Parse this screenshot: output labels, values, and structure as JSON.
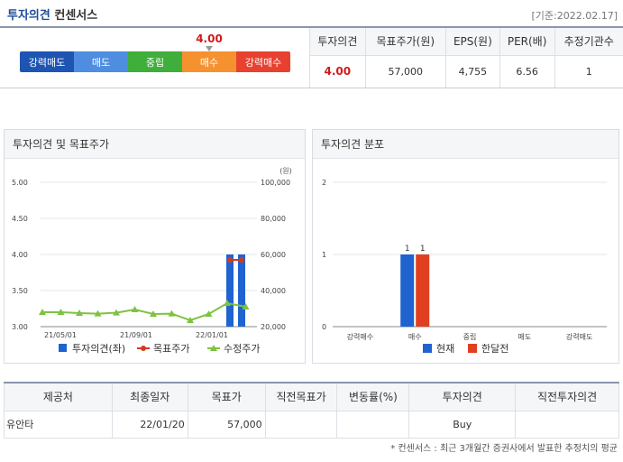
{
  "header": {
    "title_part1": "투자의견",
    "title_part2": "컨센서스",
    "base_date": "[기준:2022.02.17]"
  },
  "opinion_scale": {
    "score": "4.00",
    "score_value": 4.0,
    "levels": [
      {
        "label": "강력매도",
        "color": "#1e55b3"
      },
      {
        "label": "매도",
        "color": "#4f8de0"
      },
      {
        "label": "중립",
        "color": "#3fae3a"
      },
      {
        "label": "매수",
        "color": "#f5922f"
      },
      {
        "label": "강력매수",
        "color": "#e8412f"
      }
    ]
  },
  "consensus_table": {
    "headers": [
      "투자의견",
      "목표주가(원)",
      "EPS(원)",
      "PER(배)",
      "추정기관수"
    ],
    "values": [
      "4.00",
      "57,000",
      "4,755",
      "6.56",
      "1"
    ]
  },
  "left_panel": {
    "title": "투자의견 및 목표주가",
    "unit": "(원)",
    "legend": [
      {
        "label": "투자의견(좌)",
        "color": "#1f63d1"
      },
      {
        "label": "목표주가",
        "color": "#d23a1e"
      },
      {
        "label": "수정주가",
        "color": "#7ec242"
      }
    ]
  },
  "right_panel": {
    "title": "투자의견 분포",
    "legend": [
      {
        "label": "현재",
        "color": "#1f63d1"
      },
      {
        "label": "한달전",
        "color": "#e0401f"
      }
    ]
  },
  "providers_table": {
    "headers": [
      "제공처",
      "최종일자",
      "목표가",
      "직전목표가",
      "변동률(%)",
      "투자의견",
      "직전투자의견"
    ],
    "rows": [
      [
        "유안타",
        "22/01/20",
        "57,000",
        "",
        "",
        "Buy",
        ""
      ]
    ]
  },
  "footnote": "* 컨센서스 : 최근 3개월간 증권사에서 발표한 추정치의 평균",
  "chart_data": [
    {
      "type": "line",
      "title": "투자의견 및 목표주가",
      "ylim_left": [
        3.0,
        5.0
      ],
      "ylim_right": [
        20000,
        100000
      ],
      "yticks_left": [
        "5.00",
        "4.50",
        "4.00",
        "3.50",
        "3.00"
      ],
      "yticks_right": [
        "100,000",
        "80,000",
        "60,000",
        "40,000",
        "20,000"
      ],
      "xticks": [
        "21/05/01",
        "21/09/01",
        "22/01/01"
      ],
      "series": [
        {
          "name": "투자의견(좌)",
          "kind": "bar",
          "axis": "left",
          "values": [
            4.0,
            4.0
          ]
        },
        {
          "name": "목표주가",
          "kind": "line",
          "axis": "right",
          "values": [
            57000,
            57000
          ]
        },
        {
          "name": "수정주가",
          "kind": "line",
          "axis": "right",
          "values": [
            28000,
            28000,
            27500,
            27200,
            27700,
            29500,
            27000,
            27200,
            23500,
            27000,
            33000,
            31000
          ]
        }
      ]
    },
    {
      "type": "bar",
      "title": "투자의견 분포",
      "categories": [
        "강력매수",
        "매수",
        "중립",
        "매도",
        "강력매도"
      ],
      "ylim": [
        0,
        2
      ],
      "yticks": [
        "2",
        "1",
        "0"
      ],
      "series": [
        {
          "name": "현재",
          "values": [
            0,
            1,
            0,
            0,
            0
          ]
        },
        {
          "name": "한달전",
          "values": [
            0,
            1,
            0,
            0,
            0
          ]
        }
      ]
    }
  ]
}
